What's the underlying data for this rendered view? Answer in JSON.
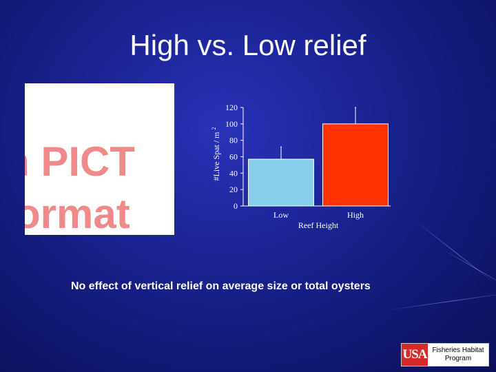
{
  "slide": {
    "title": "High vs. Low relief",
    "caption": "No effect of vertical relief on average size or total oysters"
  },
  "placeholder": {
    "line1": "h PICT",
    "line2": "ormat"
  },
  "logo": {
    "mark": "USA",
    "text_line1": "Fisheries Habitat",
    "text_line2": "Program"
  },
  "chart_data": {
    "type": "bar",
    "categories": [
      "Low",
      "High"
    ],
    "values": [
      57,
      100
    ],
    "error_upper": [
      72,
      120
    ],
    "bar_colors": [
      "#87ceeb",
      "#ff3300"
    ],
    "title": "",
    "xlabel": "Reef Height",
    "ylabel": "#Live Spat / m",
    "ylabel_superscript": "2",
    "ylim": [
      0,
      120
    ],
    "yticks": [
      0,
      20,
      40,
      60,
      80,
      100,
      120
    ],
    "grid": false,
    "legend": "none"
  }
}
